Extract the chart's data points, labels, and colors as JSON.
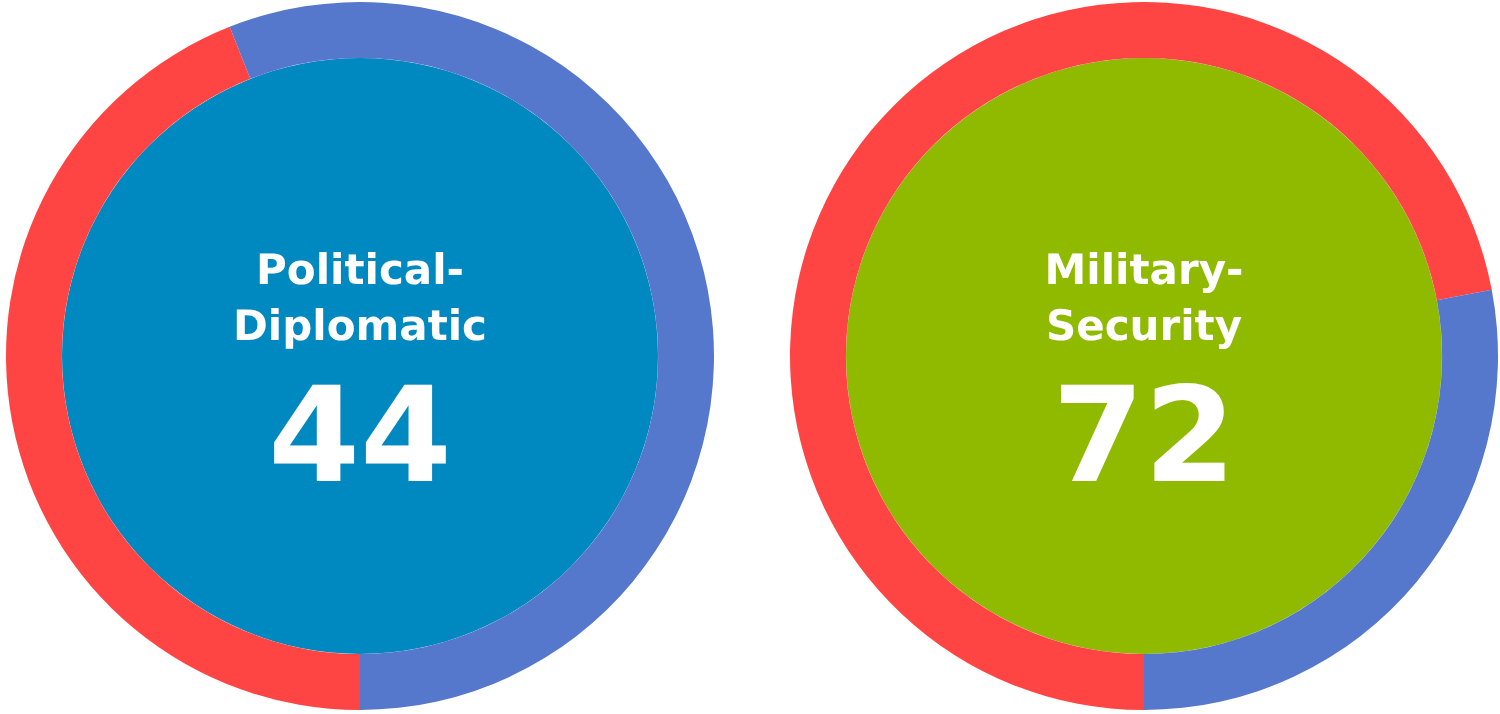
{
  "chart_data": [
    {
      "type": "donut",
      "title": "Political-\nDiplomatic",
      "categories": [
        null,
        null
      ],
      "values": [
        44,
        56
      ],
      "colors": [
        "#ff4444",
        "#5577cc"
      ],
      "annotations": [
        "44"
      ]
    },
    {
      "type": "donut",
      "title": "Military-\nSecurity",
      "categories": [
        null,
        null
      ],
      "values": [
        72,
        28
      ],
      "colors": [
        "#ff4444",
        "#5577cc"
      ],
      "annotations": [
        "72"
      ]
    }
  ]
}
